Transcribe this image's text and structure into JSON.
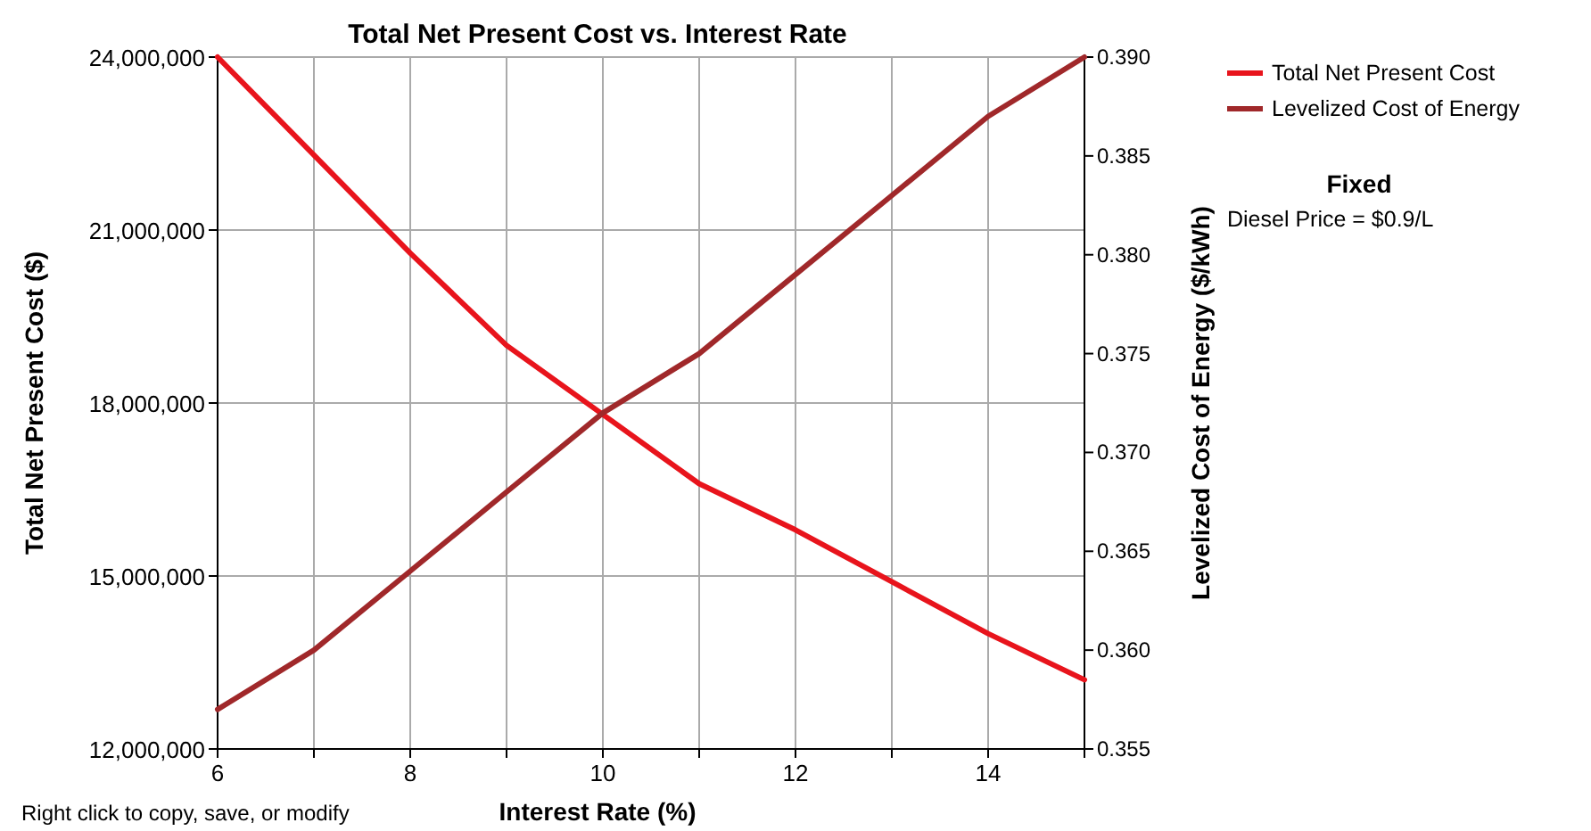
{
  "chart_data": {
    "type": "line",
    "title": "Total Net Present Cost vs. Interest Rate",
    "xlabel": "Interest Rate (%)",
    "ylabel": "Total Net Present Cost ($)",
    "y2label": "Levelized Cost of Energy ($/kWh)",
    "x": [
      6,
      7,
      8,
      9,
      10,
      11,
      12,
      13,
      14,
      15
    ],
    "series": [
      {
        "name": "Total Net Present Cost",
        "color": "#e8141c",
        "values": [
          24000000,
          22300000,
          20600000,
          19000000,
          17800000,
          16600000,
          15800000,
          14900000,
          14000000,
          13200000
        ]
      },
      {
        "name": "Levelized Cost of Energy",
        "color": "#a0282a",
        "axis": "y2",
        "values": [
          0.357,
          0.36,
          0.364,
          0.368,
          0.372,
          0.375,
          0.379,
          0.383,
          0.387,
          0.39
        ]
      }
    ],
    "xlim": [
      6,
      15
    ],
    "xticks": [
      6,
      {
        "value": 7,
        "label": null
      },
      8,
      {
        "value": 9,
        "label": null
      },
      10,
      {
        "value": 11,
        "label": null
      },
      12,
      {
        "value": 13,
        "label": null
      },
      14,
      {
        "value": 15,
        "label": null
      }
    ],
    "ylim": [
      12000000,
      24000000
    ],
    "yticks": [
      {
        "value": 12000000,
        "label": "12,000,000"
      },
      {
        "value": 15000000,
        "label": "15,000,000"
      },
      {
        "value": 18000000,
        "label": "18,000,000"
      },
      {
        "value": 21000000,
        "label": "21,000,000"
      },
      {
        "value": 24000000,
        "label": "24,000,000"
      }
    ],
    "y2lim": [
      0.355,
      0.39
    ],
    "y2ticks": [
      {
        "value": 0.355,
        "label": "0.355"
      },
      {
        "value": 0.36,
        "label": "0.360"
      },
      {
        "value": 0.365,
        "label": "0.365"
      },
      {
        "value": 0.37,
        "label": "0.370"
      },
      {
        "value": 0.375,
        "label": "0.375"
      },
      {
        "value": 0.38,
        "label": "0.380"
      },
      {
        "value": 0.385,
        "label": "0.385"
      },
      {
        "value": 0.39,
        "label": "0.390"
      }
    ],
    "grid": true,
    "legend": "right",
    "marker": "none",
    "line_style": "solid",
    "annotations": [
      "Fixed",
      "Diesel Price = $0.9/L",
      "Right click to copy, save, or modify"
    ]
  }
}
